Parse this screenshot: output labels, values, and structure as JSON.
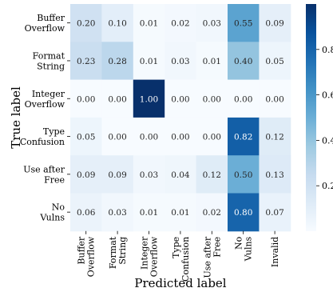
{
  "chart_data": {
    "type": "heatmap",
    "title": "",
    "xlabel": "Predicted label",
    "ylabel": "True label",
    "rows": [
      "Buffer\nOverflow",
      "Format\nString",
      "Integer\nOverflow",
      "Type\nConfusion",
      "Use after\nFree",
      "No\nVulns"
    ],
    "columns": [
      "Buffer\nOverflow",
      "Format\nString",
      "Integer\nOverflow",
      "Type\nConfusion",
      "Use after\nFree",
      "No\nVulns",
      "Invalid"
    ],
    "values": [
      [
        0.2,
        0.1,
        0.01,
        0.02,
        0.03,
        0.55,
        0.09
      ],
      [
        0.23,
        0.28,
        0.01,
        0.03,
        0.01,
        0.4,
        0.05
      ],
      [
        0.0,
        0.0,
        1.0,
        0.0,
        0.0,
        0.0,
        0.0
      ],
      [
        0.05,
        0.0,
        0.0,
        0.0,
        0.0,
        0.82,
        0.12
      ],
      [
        0.09,
        0.09,
        0.03,
        0.04,
        0.12,
        0.5,
        0.13
      ],
      [
        0.06,
        0.03,
        0.01,
        0.01,
        0.02,
        0.8,
        0.07
      ]
    ],
    "colormap": "Blues",
    "color_range": [
      0,
      1
    ],
    "colorbar_ticks": [
      "0.2",
      "0.4",
      "0.6",
      "0.8"
    ],
    "colorbar_tick_values": [
      0.2,
      0.4,
      0.6,
      0.8
    ],
    "value_format": "2 decimals"
  }
}
